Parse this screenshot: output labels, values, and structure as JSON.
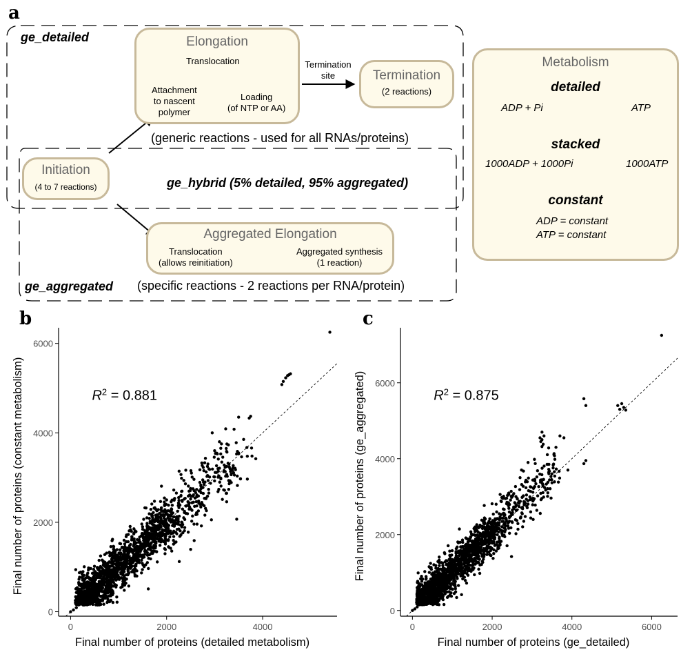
{
  "panel_a": {
    "letter": "a",
    "ge_detailed_label": "ge_detailed",
    "ge_hybrid_label": "ge_hybrid (5% detailed, 95% aggregated)",
    "ge_aggregated_label": "ge_aggregated",
    "elongation": {
      "title": "Elongation",
      "translocation": "Translocation",
      "loading": "Loading\n(of NTP or AA)",
      "attachment": "Attachment\nto nascent\npolymer"
    },
    "termination_site": "Termination\nsite",
    "termination": {
      "title": "Termination",
      "sub": "(2 reactions)"
    },
    "generic_note": "(generic reactions - used for all RNAs/proteins)",
    "initiation": {
      "title": "Initiation",
      "sub": "(4 to 7 reactions)"
    },
    "aggregated_elongation": {
      "title": "Aggregated Elongation",
      "translocation": "Translocation\n(allows reinitiation)",
      "synthesis": "Aggregated synthesis\n(1 reaction)"
    },
    "specific_note": "(specific reactions - 2 reactions per RNA/protein)",
    "metabolism": {
      "title": "Metabolism",
      "detailed_name": "detailed",
      "detailed_left": "ADP + Pi",
      "detailed_right": "ATP",
      "stacked_name": "stacked",
      "stacked_left": "1000ADP + 1000Pi",
      "stacked_right": "1000ATP",
      "constant_name": "constant",
      "constant_line1": "ADP = constant",
      "constant_line2": "ATP = constant"
    }
  },
  "chart_data": [
    {
      "panel": "b",
      "type": "scatter",
      "xlabel": "Final number of proteins (detailed metabolism)",
      "ylabel": "Final number of proteins (constant metabolism)",
      "annotation": "R² = 0.881",
      "annotation_base": "R",
      "annotation_sup": "2",
      "annotation_rest": " = 0.881",
      "xlim": [
        -250,
        5550
      ],
      "ylim": [
        -100,
        6350
      ],
      "xticks": [
        0,
        2000,
        4000
      ],
      "yticks": [
        0,
        2000,
        4000,
        6000
      ],
      "xtick_labels": [
        "0",
        "2000",
        "4000"
      ],
      "ytick_labels": [
        "0",
        "2000",
        "4000",
        "6000"
      ],
      "reference_line": "y = x (dashed)",
      "grid": false,
      "points": [
        [
          5400,
          6250
        ],
        [
          4580,
          5320
        ],
        [
          4520,
          5280
        ],
        [
          4480,
          5230
        ],
        [
          4430,
          5150
        ],
        [
          4400,
          5080
        ],
        [
          4550,
          5300
        ],
        [
          3750,
          4370
        ],
        [
          3720,
          4330
        ],
        [
          3500,
          4350
        ],
        [
          3450,
          3780
        ],
        [
          3770,
          3660
        ],
        [
          3300,
          3300
        ],
        [
          3250,
          3250
        ],
        [
          3200,
          3280
        ],
        [
          3320,
          3200
        ],
        [
          3280,
          3320
        ],
        [
          3220,
          3230
        ],
        [
          3100,
          3800
        ],
        [
          3000,
          3600
        ],
        [
          2950,
          4000
        ],
        [
          2850,
          3250
        ],
        [
          2800,
          2900
        ],
        [
          2700,
          2400
        ],
        [
          2550,
          2750
        ],
        [
          2400,
          2200
        ],
        [
          2300,
          2600
        ],
        [
          2100,
          2300
        ],
        [
          2000,
          2500
        ],
        [
          2150,
          1800
        ],
        [
          1900,
          1700
        ],
        [
          1800,
          2100
        ],
        [
          1650,
          1500
        ],
        [
          1500,
          1900
        ],
        [
          1400,
          1300
        ],
        [
          1300,
          1100
        ],
        [
          1200,
          900
        ]
      ],
      "point_cloud_note": "dense cloud of ~1,500 points between x 200–2000, y 200–2000 along the diagonal"
    },
    {
      "panel": "c",
      "type": "scatter",
      "xlabel": "Final number of proteins (ge_detailed)",
      "ylabel": "Final number of proteins (ge_aggregated)",
      "annotation": "R² = 0.875",
      "annotation_base": "R",
      "annotation_sup": "2",
      "annotation_rest": " = 0.875",
      "xlim": [
        -300,
        6650
      ],
      "ylim": [
        -150,
        7450
      ],
      "xticks": [
        0,
        2000,
        4000,
        6000
      ],
      "yticks": [
        0,
        2000,
        4000,
        6000
      ],
      "xtick_labels": [
        "0",
        "2000",
        "4000",
        "6000"
      ],
      "ytick_labels": [
        "0",
        "2000",
        "4000",
        "6000"
      ],
      "reference_line": "y = x (dashed)",
      "grid": false,
      "points": [
        [
          6250,
          7250
        ],
        [
          5250,
          5450
        ],
        [
          5300,
          5350
        ],
        [
          5200,
          5300
        ],
        [
          5350,
          5280
        ],
        [
          5150,
          5400
        ],
        [
          4300,
          5580
        ],
        [
          4350,
          5400
        ],
        [
          4350,
          3950
        ],
        [
          4300,
          3870
        ],
        [
          3200,
          4550
        ],
        [
          3250,
          4500
        ],
        [
          3300,
          4600
        ],
        [
          3220,
          4450
        ],
        [
          3280,
          4380
        ],
        [
          3250,
          4700
        ],
        [
          3700,
          4600
        ],
        [
          3800,
          4550
        ],
        [
          3600,
          4300
        ],
        [
          3900,
          3700
        ],
        [
          3500,
          3600
        ],
        [
          2900,
          3900
        ],
        [
          2700,
          3500
        ],
        [
          2500,
          3000
        ],
        [
          2300,
          2500
        ],
        [
          2100,
          2800
        ],
        [
          2000,
          2300
        ],
        [
          1800,
          2000
        ],
        [
          1600,
          2200
        ],
        [
          1500,
          1800
        ],
        [
          1300,
          1400
        ],
        [
          1200,
          1100
        ]
      ],
      "point_cloud_note": "dense cloud of ~1,500 points between x 200–2000, y 200–2000 along the diagonal"
    }
  ]
}
